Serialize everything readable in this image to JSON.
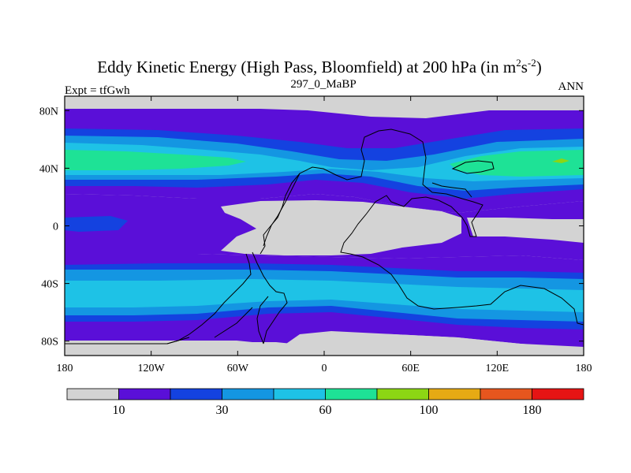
{
  "title": {
    "main": "Eddy Kinetic Energy (High Pass, Bloomfield) at 200 hPa (in m",
    "sup1": "2",
    "mid": "s",
    "sup2": "-2",
    "close": ")"
  },
  "subtitles": {
    "left": "Expt = tfGwh",
    "center": "297_0_MaBP",
    "right": "ANN"
  },
  "map": {
    "lon_range": [
      -180,
      180
    ],
    "lat_range": [
      -90,
      90
    ],
    "lon_ticks": [
      {
        "value": -180,
        "label": "180"
      },
      {
        "value": -120,
        "label": "120W"
      },
      {
        "value": -60,
        "label": "60W"
      },
      {
        "value": 0,
        "label": "0"
      },
      {
        "value": 60,
        "label": "60E"
      },
      {
        "value": 120,
        "label": "120E"
      },
      {
        "value": 180,
        "label": "180"
      }
    ],
    "lat_ticks": [
      {
        "value": 80,
        "label": "80N"
      },
      {
        "value": 40,
        "label": "40N"
      },
      {
        "value": 0,
        "label": "0"
      },
      {
        "value": -40,
        "label": "40S"
      },
      {
        "value": -80,
        "label": "80S"
      }
    ]
  },
  "colorbar": {
    "colors": [
      "#d3d3d3",
      "#5a0fd8",
      "#1442e0",
      "#1496e2",
      "#1ec2e6",
      "#1ee296",
      "#8cd614",
      "#e6aa14",
      "#e6561e",
      "#e61414"
    ],
    "labels": [
      {
        "index": 1,
        "text": "10"
      },
      {
        "index": 3,
        "text": "30"
      },
      {
        "index": 5,
        "text": "60"
      },
      {
        "index": 7,
        "text": "100"
      },
      {
        "index": 9,
        "text": "180"
      }
    ]
  }
}
